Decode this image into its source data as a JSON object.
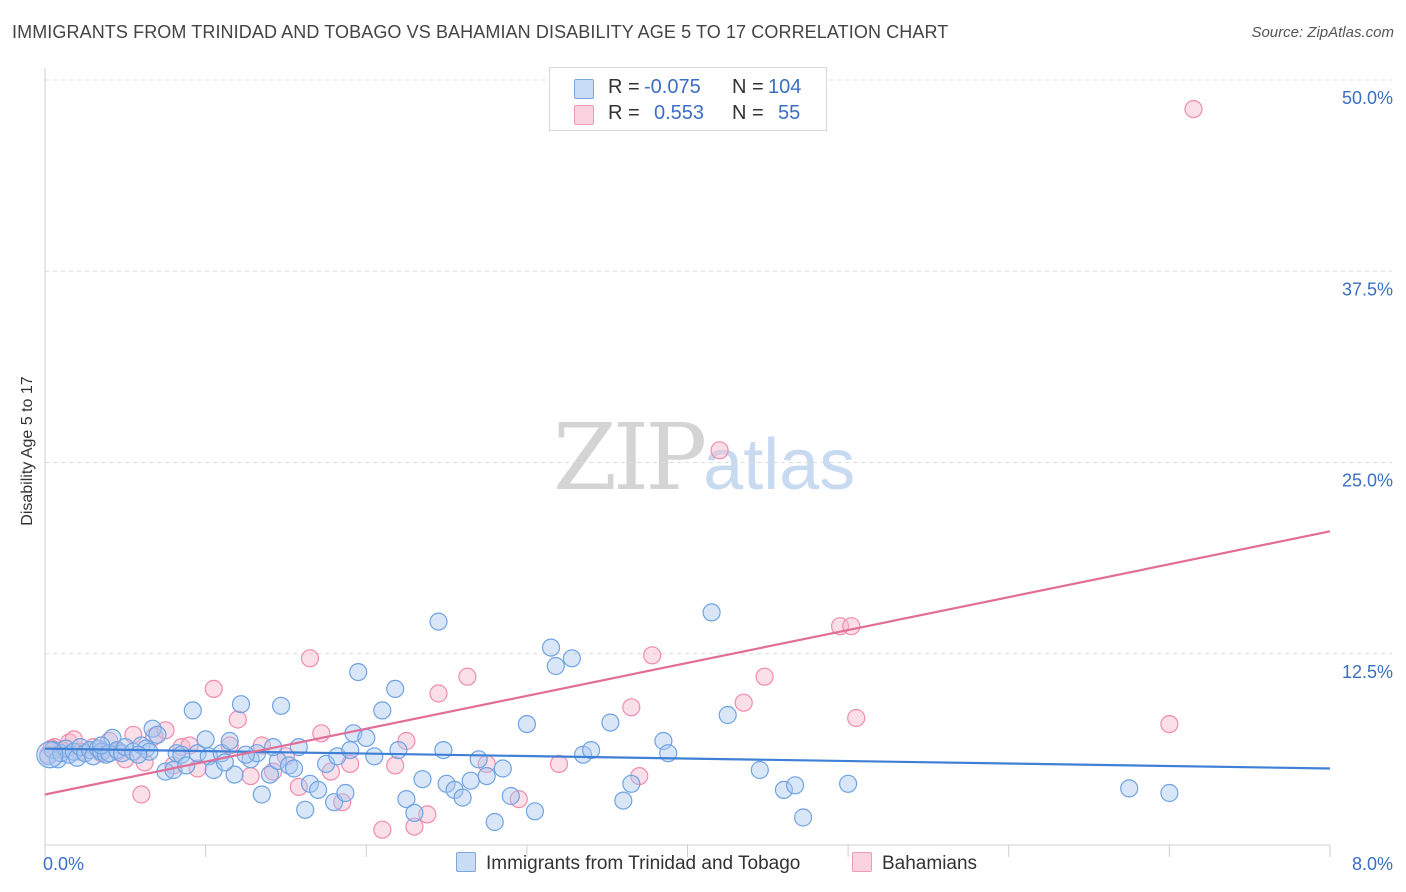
{
  "title": "IMMIGRANTS FROM TRINIDAD AND TOBAGO VS BAHAMIAN DISABILITY AGE 5 TO 17 CORRELATION CHART",
  "source": "Source: ZipAtlas.com",
  "watermark": {
    "zip": "ZIP",
    "atlas": "atlas"
  },
  "stats": [
    {
      "r_label": "R =",
      "r_value": "-0.075",
      "n_label": "N =",
      "n_value": "104",
      "color": "#a9c8f0"
    },
    {
      "r_label": "R =",
      "r_value": "0.553",
      "n_label": "N =",
      "n_value": "55",
      "color": "#f7b9cd"
    }
  ],
  "legend": [
    {
      "label": "Immigrants from Trinidad and Tobago",
      "color": "#a9c8f0"
    },
    {
      "label": "Bahamians",
      "color": "#f7b9cd"
    }
  ],
  "chart_data": {
    "type": "scatter",
    "title": "IMMIGRANTS FROM TRINIDAD AND TOBAGO VS BAHAMIAN DISABILITY AGE 5 TO 17 CORRELATION CHART",
    "xlabel": "",
    "ylabel": "Disability Age 5 to 17",
    "xlim": [
      0,
      8
    ],
    "ylim": [
      0,
      50
    ],
    "x_tick_labels": [
      "0.0%",
      "8.0%"
    ],
    "y_ticks": [
      12.5,
      25.0,
      37.5,
      50.0
    ],
    "y_tick_labels": [
      "12.5%",
      "25.0%",
      "37.5%",
      "50.0%"
    ],
    "grid": true,
    "legend_position": "bottom-center",
    "series": [
      {
        "name": "Immigrants from Trinidad and Tobago",
        "color": "#6fa3e3",
        "trend": {
          "x": [
            0,
            8
          ],
          "y": [
            6.3,
            5.0
          ]
        },
        "points": [
          [
            0.02,
            5.8
          ],
          [
            0.05,
            6.2
          ],
          [
            0.08,
            5.6
          ],
          [
            0.1,
            6.0
          ],
          [
            0.13,
            6.3
          ],
          [
            0.15,
            5.9
          ],
          [
            0.18,
            6.1
          ],
          [
            0.2,
            5.7
          ],
          [
            0.22,
            6.4
          ],
          [
            0.25,
            6.0
          ],
          [
            0.28,
            6.2
          ],
          [
            0.3,
            5.8
          ],
          [
            0.33,
            6.3
          ],
          [
            0.35,
            6.1
          ],
          [
            0.38,
            5.9
          ],
          [
            0.4,
            6.0
          ],
          [
            0.42,
            7.0
          ],
          [
            0.45,
            6.2
          ],
          [
            0.48,
            6.0
          ],
          [
            0.5,
            6.4
          ],
          [
            0.55,
            6.1
          ],
          [
            0.6,
            6.5
          ],
          [
            0.63,
            6.3
          ],
          [
            0.67,
            7.6
          ],
          [
            0.7,
            7.2
          ],
          [
            0.75,
            4.8
          ],
          [
            0.8,
            4.9
          ],
          [
            0.82,
            6.0
          ],
          [
            0.85,
            5.9
          ],
          [
            0.88,
            5.2
          ],
          [
            0.92,
            8.8
          ],
          [
            0.95,
            6.0
          ],
          [
            1.0,
            6.9
          ],
          [
            1.02,
            5.8
          ],
          [
            1.05,
            4.9
          ],
          [
            1.1,
            6.0
          ],
          [
            1.15,
            6.8
          ],
          [
            1.18,
            4.6
          ],
          [
            1.22,
            9.2
          ],
          [
            1.28,
            5.6
          ],
          [
            1.32,
            6.0
          ],
          [
            1.35,
            3.3
          ],
          [
            1.4,
            4.6
          ],
          [
            1.45,
            5.5
          ],
          [
            1.47,
            9.1
          ],
          [
            1.52,
            5.2
          ],
          [
            1.55,
            5.0
          ],
          [
            1.58,
            6.4
          ],
          [
            1.62,
            2.3
          ],
          [
            1.65,
            4.0
          ],
          [
            1.7,
            3.6
          ],
          [
            1.75,
            5.3
          ],
          [
            1.8,
            2.8
          ],
          [
            1.82,
            5.8
          ],
          [
            1.87,
            3.4
          ],
          [
            1.9,
            6.2
          ],
          [
            1.92,
            7.3
          ],
          [
            1.95,
            11.3
          ],
          [
            2.0,
            7.0
          ],
          [
            2.05,
            5.8
          ],
          [
            2.1,
            8.8
          ],
          [
            2.18,
            10.2
          ],
          [
            2.2,
            6.2
          ],
          [
            2.25,
            3.0
          ],
          [
            2.3,
            2.1
          ],
          [
            2.35,
            4.3
          ],
          [
            2.45,
            14.6
          ],
          [
            2.48,
            6.2
          ],
          [
            2.5,
            4.0
          ],
          [
            2.55,
            3.6
          ],
          [
            2.6,
            3.1
          ],
          [
            2.65,
            4.2
          ],
          [
            2.7,
            5.6
          ],
          [
            2.75,
            4.5
          ],
          [
            2.8,
            1.5
          ],
          [
            2.85,
            5.0
          ],
          [
            3.0,
            7.9
          ],
          [
            3.05,
            2.2
          ],
          [
            3.15,
            12.9
          ],
          [
            3.18,
            11.7
          ],
          [
            3.28,
            12.2
          ],
          [
            3.35,
            5.9
          ],
          [
            3.4,
            6.2
          ],
          [
            3.52,
            8.0
          ],
          [
            3.6,
            2.9
          ],
          [
            3.65,
            4.0
          ],
          [
            3.85,
            6.8
          ],
          [
            3.88,
            6.0
          ],
          [
            4.15,
            15.2
          ],
          [
            4.25,
            8.5
          ],
          [
            4.45,
            4.9
          ],
          [
            4.6,
            3.6
          ],
          [
            4.67,
            3.9
          ],
          [
            4.72,
            1.8
          ],
          [
            5.0,
            4.0
          ],
          [
            6.75,
            3.7
          ],
          [
            7.0,
            3.4
          ],
          [
            1.25,
            5.9
          ],
          [
            0.65,
            6.1
          ],
          [
            1.12,
            5.4
          ],
          [
            2.9,
            3.2
          ],
          [
            1.42,
            6.4
          ],
          [
            0.35,
            6.5
          ],
          [
            0.58,
            5.9
          ]
        ]
      },
      {
        "name": "Bahamians",
        "color": "#f08bb0",
        "trend": {
          "x": [
            0,
            8
          ],
          "y": [
            3.3,
            20.5
          ]
        },
        "points": [
          [
            0.02,
            5.9
          ],
          [
            0.06,
            6.4
          ],
          [
            0.1,
            6.2
          ],
          [
            0.15,
            6.7
          ],
          [
            0.18,
            6.9
          ],
          [
            0.22,
            6.1
          ],
          [
            0.3,
            6.4
          ],
          [
            0.35,
            6.0
          ],
          [
            0.4,
            6.8
          ],
          [
            0.45,
            6.1
          ],
          [
            0.5,
            5.6
          ],
          [
            0.55,
            7.2
          ],
          [
            0.6,
            3.3
          ],
          [
            0.62,
            5.4
          ],
          [
            0.68,
            7.1
          ],
          [
            0.75,
            7.5
          ],
          [
            0.8,
            5.2
          ],
          [
            0.85,
            6.4
          ],
          [
            0.9,
            6.5
          ],
          [
            0.95,
            5.0
          ],
          [
            1.05,
            10.2
          ],
          [
            1.15,
            6.5
          ],
          [
            1.2,
            8.2
          ],
          [
            1.28,
            4.5
          ],
          [
            1.35,
            6.5
          ],
          [
            1.42,
            4.8
          ],
          [
            1.5,
            5.8
          ],
          [
            1.58,
            3.8
          ],
          [
            1.65,
            12.2
          ],
          [
            1.72,
            7.3
          ],
          [
            1.78,
            4.8
          ],
          [
            1.85,
            2.8
          ],
          [
            1.9,
            5.3
          ],
          [
            2.1,
            1.0
          ],
          [
            2.18,
            5.2
          ],
          [
            2.25,
            6.8
          ],
          [
            2.3,
            1.2
          ],
          [
            2.38,
            2.0
          ],
          [
            2.45,
            9.9
          ],
          [
            2.63,
            11.0
          ],
          [
            2.75,
            5.3
          ],
          [
            2.95,
            3.0
          ],
          [
            3.2,
            5.3
          ],
          [
            3.65,
            9.0
          ],
          [
            3.7,
            4.5
          ],
          [
            3.78,
            12.4
          ],
          [
            4.2,
            25.8
          ],
          [
            4.35,
            9.3
          ],
          [
            4.48,
            11.0
          ],
          [
            4.95,
            14.3
          ],
          [
            5.02,
            14.3
          ],
          [
            5.05,
            8.3
          ],
          [
            7.0,
            7.9
          ],
          [
            7.15,
            48.1
          ],
          [
            0.04,
            6.3
          ]
        ]
      }
    ]
  }
}
